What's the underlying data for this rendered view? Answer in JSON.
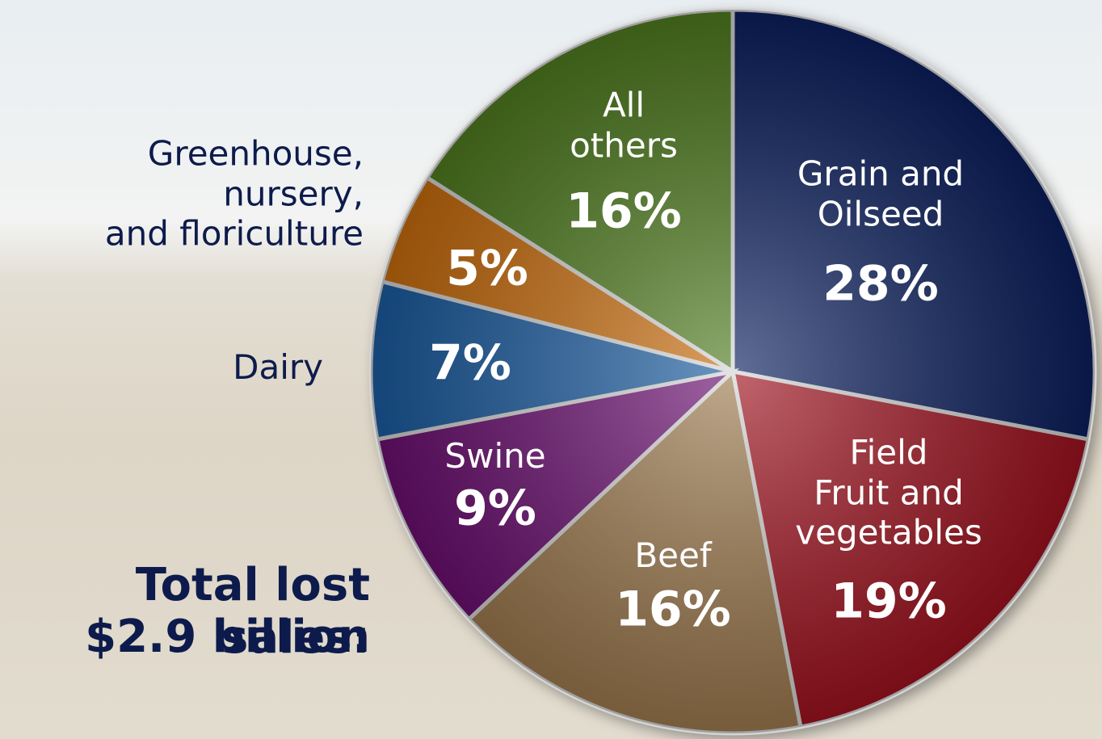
{
  "chart_data": {
    "type": "pie",
    "categories": [
      "Grain and\nOilseed",
      "Field\nFruit and\nvegetables",
      "Beef",
      "Swine",
      "Dairy",
      "Greenhouse,\nnursery,\nand floriculture",
      "All\nothers"
    ],
    "values": [
      28,
      19,
      16,
      9,
      7,
      5,
      16
    ],
    "value_labels": [
      "28%",
      "19%",
      "16%",
      "9%",
      "7%",
      "5%",
      "16%"
    ],
    "colors": [
      "#0b1f5e",
      "#a0121f",
      "#9e7b4f",
      "#6b0f70",
      "#1b5ca0",
      "#c86c0c",
      "#4f7c1f"
    ],
    "annotations": [
      "Total lost sales:",
      "$2.9 billion"
    ]
  }
}
